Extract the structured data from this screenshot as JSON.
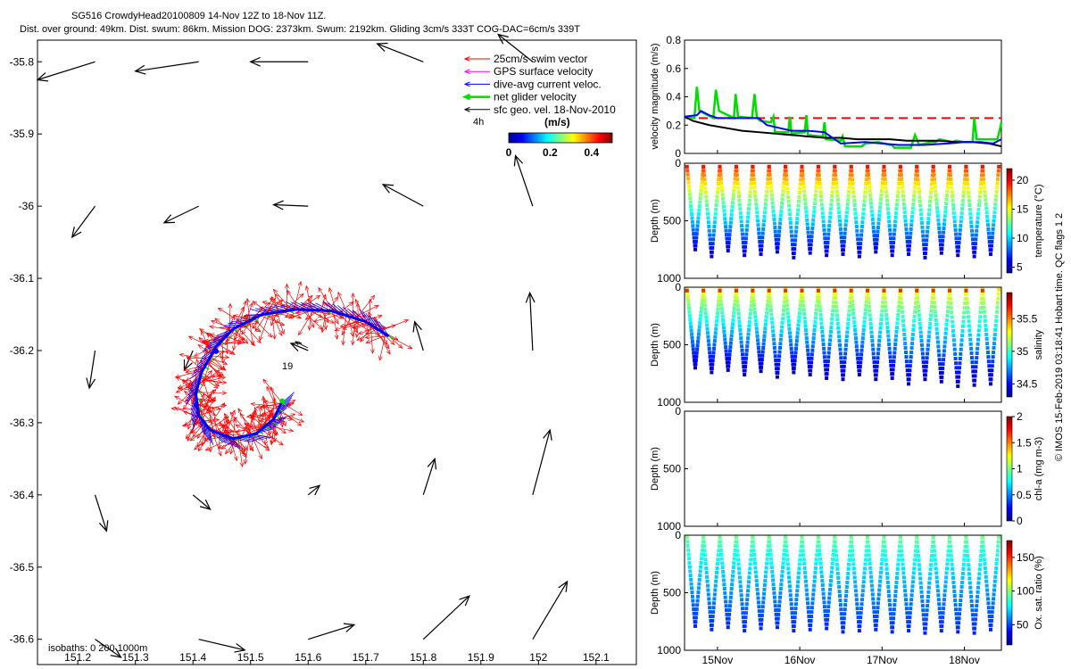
{
  "header": {
    "line1": "SG516 CrowdyHead20100809 14-Nov 12Z to 18-Nov 11Z.",
    "line2": "Dist. over ground: 49km. Dist. swum: 86km. Mission DOG: 2373km. Swum: 2192km. Gliding 3cm/s 333T COG-DAC=6cm/s 339T"
  },
  "colors": {
    "swim": "#ff0000",
    "gps": "#ff00ff",
    "dac": "#0000ff",
    "net": "#00dd00",
    "sfc": "#000000",
    "threshold": "#ff0000"
  },
  "chart_data": [
    {
      "type": "scatter",
      "name": "map",
      "xlim": [
        151.13,
        152.17
      ],
      "ylim": [
        -36.635,
        -35.77
      ],
      "xticks": [
        151.2,
        151.3,
        151.4,
        151.5,
        151.6,
        151.7,
        151.8,
        151.9,
        152,
        152.1
      ],
      "xtick_labels": [
        "151.2",
        "151.3",
        "151.4",
        "151.5",
        "151.6",
        "151.7",
        "151.8",
        "151.9",
        "152",
        "152.1"
      ],
      "yticks": [
        -35.8,
        -35.9,
        -36,
        -36.1,
        -36.2,
        -36.3,
        -36.4,
        -36.5,
        -36.6
      ],
      "ytick_labels": [
        "-35.8",
        "-35.9",
        "-36",
        "-36.1",
        "-36.2",
        "-36.3",
        "-36.4",
        "-36.5",
        "-36.6"
      ],
      "legend": {
        "entries": [
          "25cm/s swim vector",
          "GPS surface velocity",
          "dive-avg current veloc.",
          "net glider velocity",
          "sfc geo. vel. 18-Nov-2010"
        ],
        "placement": "top-right"
      },
      "colorbar": {
        "label": "(m/s)",
        "ticks": [
          "0",
          "0.2",
          "0.4"
        ],
        "range": [
          0,
          0.5
        ]
      },
      "annotations": {
        "time_label": "4h",
        "dive_label": "19",
        "isobaths": "isobaths: 0   200   1000m"
      },
      "track": [
        [
          151.74,
          -36.18
        ],
        [
          151.7,
          -36.16
        ],
        [
          151.64,
          -36.145
        ],
        [
          151.58,
          -36.143
        ],
        [
          151.52,
          -36.15
        ],
        [
          151.47,
          -36.17
        ],
        [
          151.44,
          -36.195
        ],
        [
          151.415,
          -36.23
        ],
        [
          151.405,
          -36.26
        ],
        [
          151.41,
          -36.29
        ],
        [
          151.43,
          -36.31
        ],
        [
          151.47,
          -36.322
        ],
        [
          151.51,
          -36.315
        ],
        [
          151.54,
          -36.295
        ],
        [
          151.555,
          -36.27
        ]
      ],
      "sfc_vectors": [
        [
          [
            151.23,
            -35.8
          ],
          [
            151.13,
            -35.825
          ]
        ],
        [
          [
            151.41,
            -35.8
          ],
          [
            151.3,
            -35.813
          ]
        ],
        [
          [
            151.6,
            -35.8
          ],
          [
            151.5,
            -35.8
          ]
        ],
        [
          [
            151.8,
            -35.8
          ],
          [
            151.72,
            -35.775
          ]
        ],
        [
          [
            151.99,
            -35.8
          ],
          [
            151.93,
            -35.762
          ]
        ],
        [
          [
            151.23,
            -36.0
          ],
          [
            151.19,
            -36.043
          ]
        ],
        [
          [
            151.41,
            -36.0
          ],
          [
            151.35,
            -36.023
          ]
        ],
        [
          [
            151.6,
            -36.0
          ],
          [
            151.54,
            -35.998
          ]
        ],
        [
          [
            151.8,
            -36.0
          ],
          [
            151.73,
            -35.97
          ]
        ],
        [
          [
            151.99,
            -36.0
          ],
          [
            151.96,
            -35.93
          ]
        ],
        [
          [
            151.23,
            -36.2
          ],
          [
            151.22,
            -36.252
          ]
        ],
        [
          [
            151.4,
            -36.2
          ],
          [
            151.385,
            -36.227
          ]
        ],
        [
          [
            151.6,
            -36.2
          ],
          [
            151.57,
            -36.19
          ]
        ],
        [
          [
            151.8,
            -36.2
          ],
          [
            151.785,
            -36.16
          ]
        ],
        [
          [
            151.99,
            -36.2
          ],
          [
            151.985,
            -36.12
          ]
        ],
        [
          [
            151.23,
            -36.4
          ],
          [
            151.25,
            -36.45
          ]
        ],
        [
          [
            151.4,
            -36.4
          ],
          [
            151.43,
            -36.42
          ]
        ],
        [
          [
            151.6,
            -36.4
          ],
          [
            151.62,
            -36.387
          ]
        ],
        [
          [
            151.8,
            -36.4
          ],
          [
            151.82,
            -36.35
          ]
        ],
        [
          [
            151.99,
            -36.4
          ],
          [
            152.02,
            -36.31
          ]
        ],
        [
          [
            151.23,
            -36.6
          ],
          [
            151.275,
            -36.625
          ]
        ],
        [
          [
            151.41,
            -36.6
          ],
          [
            151.49,
            -36.615
          ]
        ],
        [
          [
            151.6,
            -36.6
          ],
          [
            151.68,
            -36.58
          ]
        ],
        [
          [
            151.8,
            -36.6
          ],
          [
            151.88,
            -36.54
          ]
        ],
        [
          [
            151.99,
            -36.6
          ],
          [
            152.05,
            -36.52
          ]
        ]
      ]
    },
    {
      "type": "line",
      "name": "velocity",
      "ylabel": "velocity magnitude (m/s)",
      "xlim": [
        14.6,
        18.45
      ],
      "ylim": [
        0,
        0.8
      ],
      "yticks": [
        0,
        0.2,
        0.4,
        0.6,
        0.8
      ],
      "ytick_labels": [
        "0",
        "0.2",
        "0.4",
        "0.6",
        "0.8"
      ],
      "series": [
        {
          "x": [
            14.6,
            18.45
          ],
          "y": [
            0.25,
            0.25
          ]
        },
        {
          "x": [
            14.6,
            14.75,
            14.8,
            14.9,
            15.0,
            15.1,
            15.25,
            15.4,
            15.5,
            15.6,
            15.75,
            15.9,
            16.1,
            16.3,
            16.5,
            16.8,
            17.0,
            17.2,
            17.5,
            17.8,
            18.0,
            18.2,
            18.35,
            18.45
          ],
          "y": [
            0.26,
            0.27,
            0.3,
            0.27,
            0.25,
            0.25,
            0.25,
            0.25,
            0.25,
            0.2,
            0.18,
            0.16,
            0.16,
            0.15,
            0.07,
            0.08,
            0.07,
            0.06,
            0.06,
            0.07,
            0.08,
            0.08,
            0.07,
            0.1
          ]
        },
        {
          "x": [
            14.6,
            14.7,
            14.9,
            15.1,
            15.3,
            15.5,
            15.7,
            15.9,
            16.1,
            16.3,
            16.5,
            16.7,
            16.9,
            17.1,
            17.3,
            17.5,
            17.7,
            17.9,
            18.1,
            18.3,
            18.45
          ],
          "y": [
            0.26,
            0.23,
            0.2,
            0.18,
            0.16,
            0.15,
            0.14,
            0.13,
            0.12,
            0.11,
            0.11,
            0.1,
            0.1,
            0.1,
            0.09,
            0.09,
            0.09,
            0.08,
            0.08,
            0.07,
            0.05
          ]
        },
        {
          "x": [
            14.6,
            14.72,
            14.75,
            14.78,
            14.95,
            14.98,
            15.02,
            15.2,
            15.22,
            15.25,
            15.42,
            15.45,
            15.48,
            15.52,
            15.65,
            15.68,
            15.7,
            15.86,
            15.88,
            15.9,
            16.06,
            16.08,
            16.1,
            16.28,
            16.3,
            16.32,
            16.5,
            16.52,
            16.55,
            16.75,
            16.8,
            16.95,
            17.1,
            17.12,
            17.15,
            17.35,
            17.4,
            17.45,
            17.6,
            17.65,
            17.7,
            17.85,
            17.9,
            18.0,
            18.1,
            18.12,
            18.15,
            18.3,
            18.35,
            18.4,
            18.42,
            18.45
          ],
          "y": [
            0.25,
            0.25,
            0.47,
            0.3,
            0.25,
            0.45,
            0.3,
            0.25,
            0.42,
            0.26,
            0.25,
            0.42,
            0.25,
            0.23,
            0.22,
            0.26,
            0.15,
            0.15,
            0.26,
            0.14,
            0.15,
            0.27,
            0.13,
            0.12,
            0.22,
            0.1,
            0.09,
            0.12,
            0.05,
            0.05,
            0.07,
            0.08,
            0.06,
            0.06,
            0.04,
            0.04,
            0.13,
            0.06,
            0.08,
            0.08,
            0.1,
            0.08,
            0.09,
            0.08,
            0.08,
            0.25,
            0.1,
            0.1,
            0.1,
            0.1,
            0.14,
            0.22
          ]
        }
      ]
    },
    {
      "type": "scatter",
      "name": "temperature",
      "ylabel": "Depth (m)",
      "yticks": [
        0,
        500,
        1000
      ],
      "ytick_labels": [
        "0",
        "500",
        "1000"
      ],
      "ylim": [
        1000,
        0
      ],
      "colorbar": {
        "label": "temperature (°C)",
        "range": [
          4,
          22
        ],
        "ticks": [
          5,
          10,
          15,
          20
        ],
        "tick_labels": [
          "5",
          "10",
          "15",
          "20"
        ]
      },
      "dives": 19,
      "depth_min": 30,
      "depth_max": [
        750,
        810,
        760,
        800,
        790,
        770,
        820,
        780,
        800,
        790,
        810,
        770,
        800,
        790,
        820,
        780,
        800,
        810,
        790
      ],
      "value_surface": 19.5,
      "value_deep": 5.5
    },
    {
      "type": "scatter",
      "name": "salinity",
      "ylabel": "Depth (m)",
      "yticks": [
        0,
        500,
        1000
      ],
      "ytick_labels": [
        "0",
        "500",
        "1000"
      ],
      "ylim": [
        1000,
        0
      ],
      "colorbar": {
        "label": "salinity",
        "range": [
          34.3,
          35.9
        ],
        "ticks": [
          34.5,
          35,
          35.5
        ],
        "tick_labels": [
          "34.5",
          "35",
          "35.5"
        ]
      },
      "dives": 19,
      "depth_min": 20,
      "depth_max": [
        700,
        740,
        720,
        760,
        730,
        780,
        740,
        760,
        790,
        800,
        760,
        800,
        790,
        840,
        800,
        820,
        860,
        850,
        840
      ],
      "value_surface": 35.35,
      "value_deep": 34.4
    },
    {
      "type": "scatter",
      "name": "chl-a",
      "ylabel": "Depth (m)",
      "yticks": [
        0,
        500,
        1000
      ],
      "ytick_labels": [
        "0",
        "500",
        "1000"
      ],
      "ylim": [
        1000,
        0
      ],
      "colorbar": {
        "label": "chl-a (mg m-3)",
        "range": [
          0,
          2
        ],
        "ticks": [
          0,
          0.5,
          1,
          1.5,
          2
        ],
        "tick_labels": [
          "0",
          "0.5",
          "1",
          "1.5",
          "2"
        ]
      }
    },
    {
      "type": "scatter",
      "name": "oxygen",
      "ylabel": "Depth (m)",
      "yticks": [
        0,
        500,
        1000
      ],
      "ytick_labels": [
        "0",
        "500",
        "1000"
      ],
      "ylim": [
        1000,
        0
      ],
      "colorbar": {
        "label": "Ox. sat. ratio (%)",
        "range": [
          20,
          175
        ],
        "ticks": [
          50,
          100,
          150
        ],
        "tick_labels": [
          "50",
          "100",
          "150"
        ]
      },
      "dives": 19,
      "depth_min": 20,
      "depth_max": [
        790,
        820,
        800,
        830,
        810,
        800,
        830,
        820,
        810,
        840,
        830,
        820,
        840,
        830,
        850,
        830,
        840,
        850,
        820
      ],
      "value_surface": 95,
      "value_deep": 45
    },
    {
      "type": "axis",
      "name": "time",
      "xlim": [
        14.6,
        18.45
      ],
      "ticks": [
        15,
        16,
        17,
        18
      ],
      "tick_labels": [
        "15Nov",
        "16Nov",
        "17Nov",
        "18Nov"
      ]
    }
  ],
  "footer": {
    "credit": "© IMOS 15-Feb-2019 03:18:41 Hobart time. QC flags 1  2"
  }
}
